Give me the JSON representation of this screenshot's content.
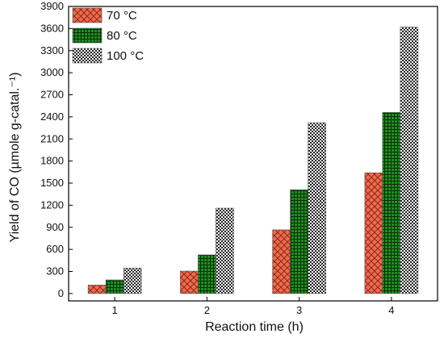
{
  "chart_data": {
    "type": "bar",
    "xlabel": "Reaction time (h)",
    "ylabel": "Yield of CO (µmole g-catal.⁻¹)",
    "categories": [
      "1",
      "2",
      "3",
      "4"
    ],
    "ylim": [
      -100,
      3900
    ],
    "yticks": [
      0,
      300,
      600,
      900,
      1200,
      1500,
      1800,
      2100,
      2400,
      2700,
      3000,
      3300,
      3600,
      3900
    ],
    "grid": false,
    "legend_position": "top-left",
    "series": [
      {
        "name": "70 °C",
        "values": [
          115,
          305,
          865,
          1640
        ],
        "color": "#ef6b4d",
        "pattern": "crosshatch"
      },
      {
        "name": "80 °C",
        "values": [
          185,
          525,
          1410,
          2460
        ],
        "color": "#1f8f1f",
        "pattern": "grid"
      },
      {
        "name": "100 °C",
        "values": [
          345,
          1160,
          2320,
          3620
        ],
        "color": "#d9d9d9",
        "pattern": "checker"
      }
    ]
  }
}
